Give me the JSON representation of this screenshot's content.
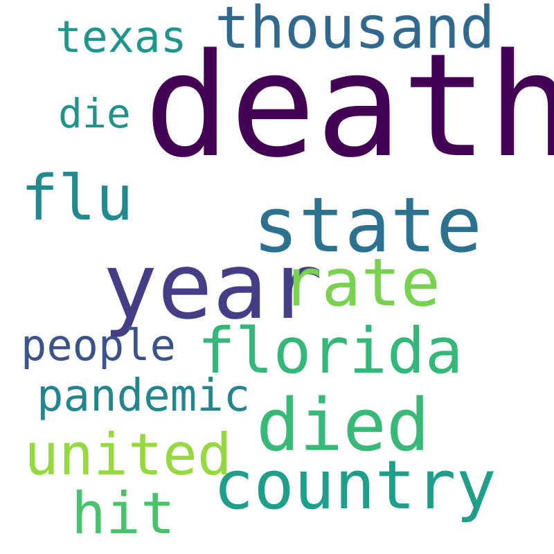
{
  "words": [
    {
      "text": "death",
      "color": "#440154"
    },
    {
      "text": "thousand",
      "color": "#31688e"
    },
    {
      "text": "texas",
      "color": "#1f968b"
    },
    {
      "text": "die",
      "color": "#21918c"
    },
    {
      "text": "flu",
      "color": "#23898e"
    },
    {
      "text": "state",
      "color": "#2c728e"
    },
    {
      "text": "year",
      "color": "#433e85"
    },
    {
      "text": "rate",
      "color": "#7ad151"
    },
    {
      "text": "people",
      "color": "#3b528b"
    },
    {
      "text": "florida",
      "color": "#35b779"
    },
    {
      "text": "pandemic",
      "color": "#25858e"
    },
    {
      "text": "died",
      "color": "#38b977"
    },
    {
      "text": "united",
      "color": "#95d840"
    },
    {
      "text": "country",
      "color": "#1f9e89"
    },
    {
      "text": "hit",
      "color": "#4ac16d"
    }
  ]
}
